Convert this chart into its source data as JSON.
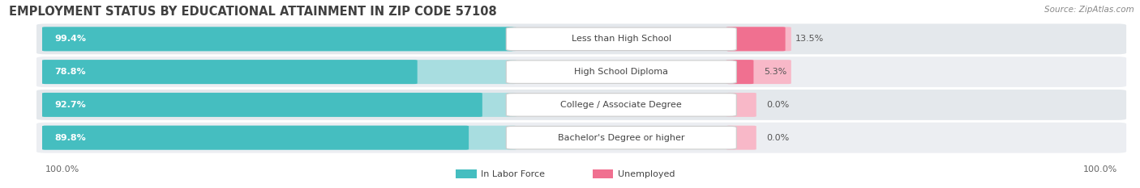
{
  "title": "EMPLOYMENT STATUS BY EDUCATIONAL ATTAINMENT IN ZIP CODE 57108",
  "source": "Source: ZipAtlas.com",
  "categories": [
    "Less than High School",
    "High School Diploma",
    "College / Associate Degree",
    "Bachelor's Degree or higher"
  ],
  "in_labor_force": [
    99.4,
    78.8,
    92.7,
    89.8
  ],
  "unemployed": [
    13.5,
    5.3,
    0.0,
    0.0
  ],
  "labor_force_color": "#45BEC0",
  "labor_force_color_light": "#A8DDE0",
  "unemployed_color": "#F07090",
  "unemployed_color_light": "#F8B8C8",
  "row_bg_color_dark": "#E4E8EC",
  "row_bg_color_light": "#ECEEF2",
  "max_value": 100.0,
  "x_left_label": "100.0%",
  "x_right_label": "100.0%",
  "title_fontsize": 10.5,
  "source_fontsize": 7.5,
  "tick_fontsize": 8,
  "bar_label_fontsize": 8,
  "cat_label_fontsize": 8,
  "unemp_label_fontsize": 8,
  "legend_fontsize": 8
}
